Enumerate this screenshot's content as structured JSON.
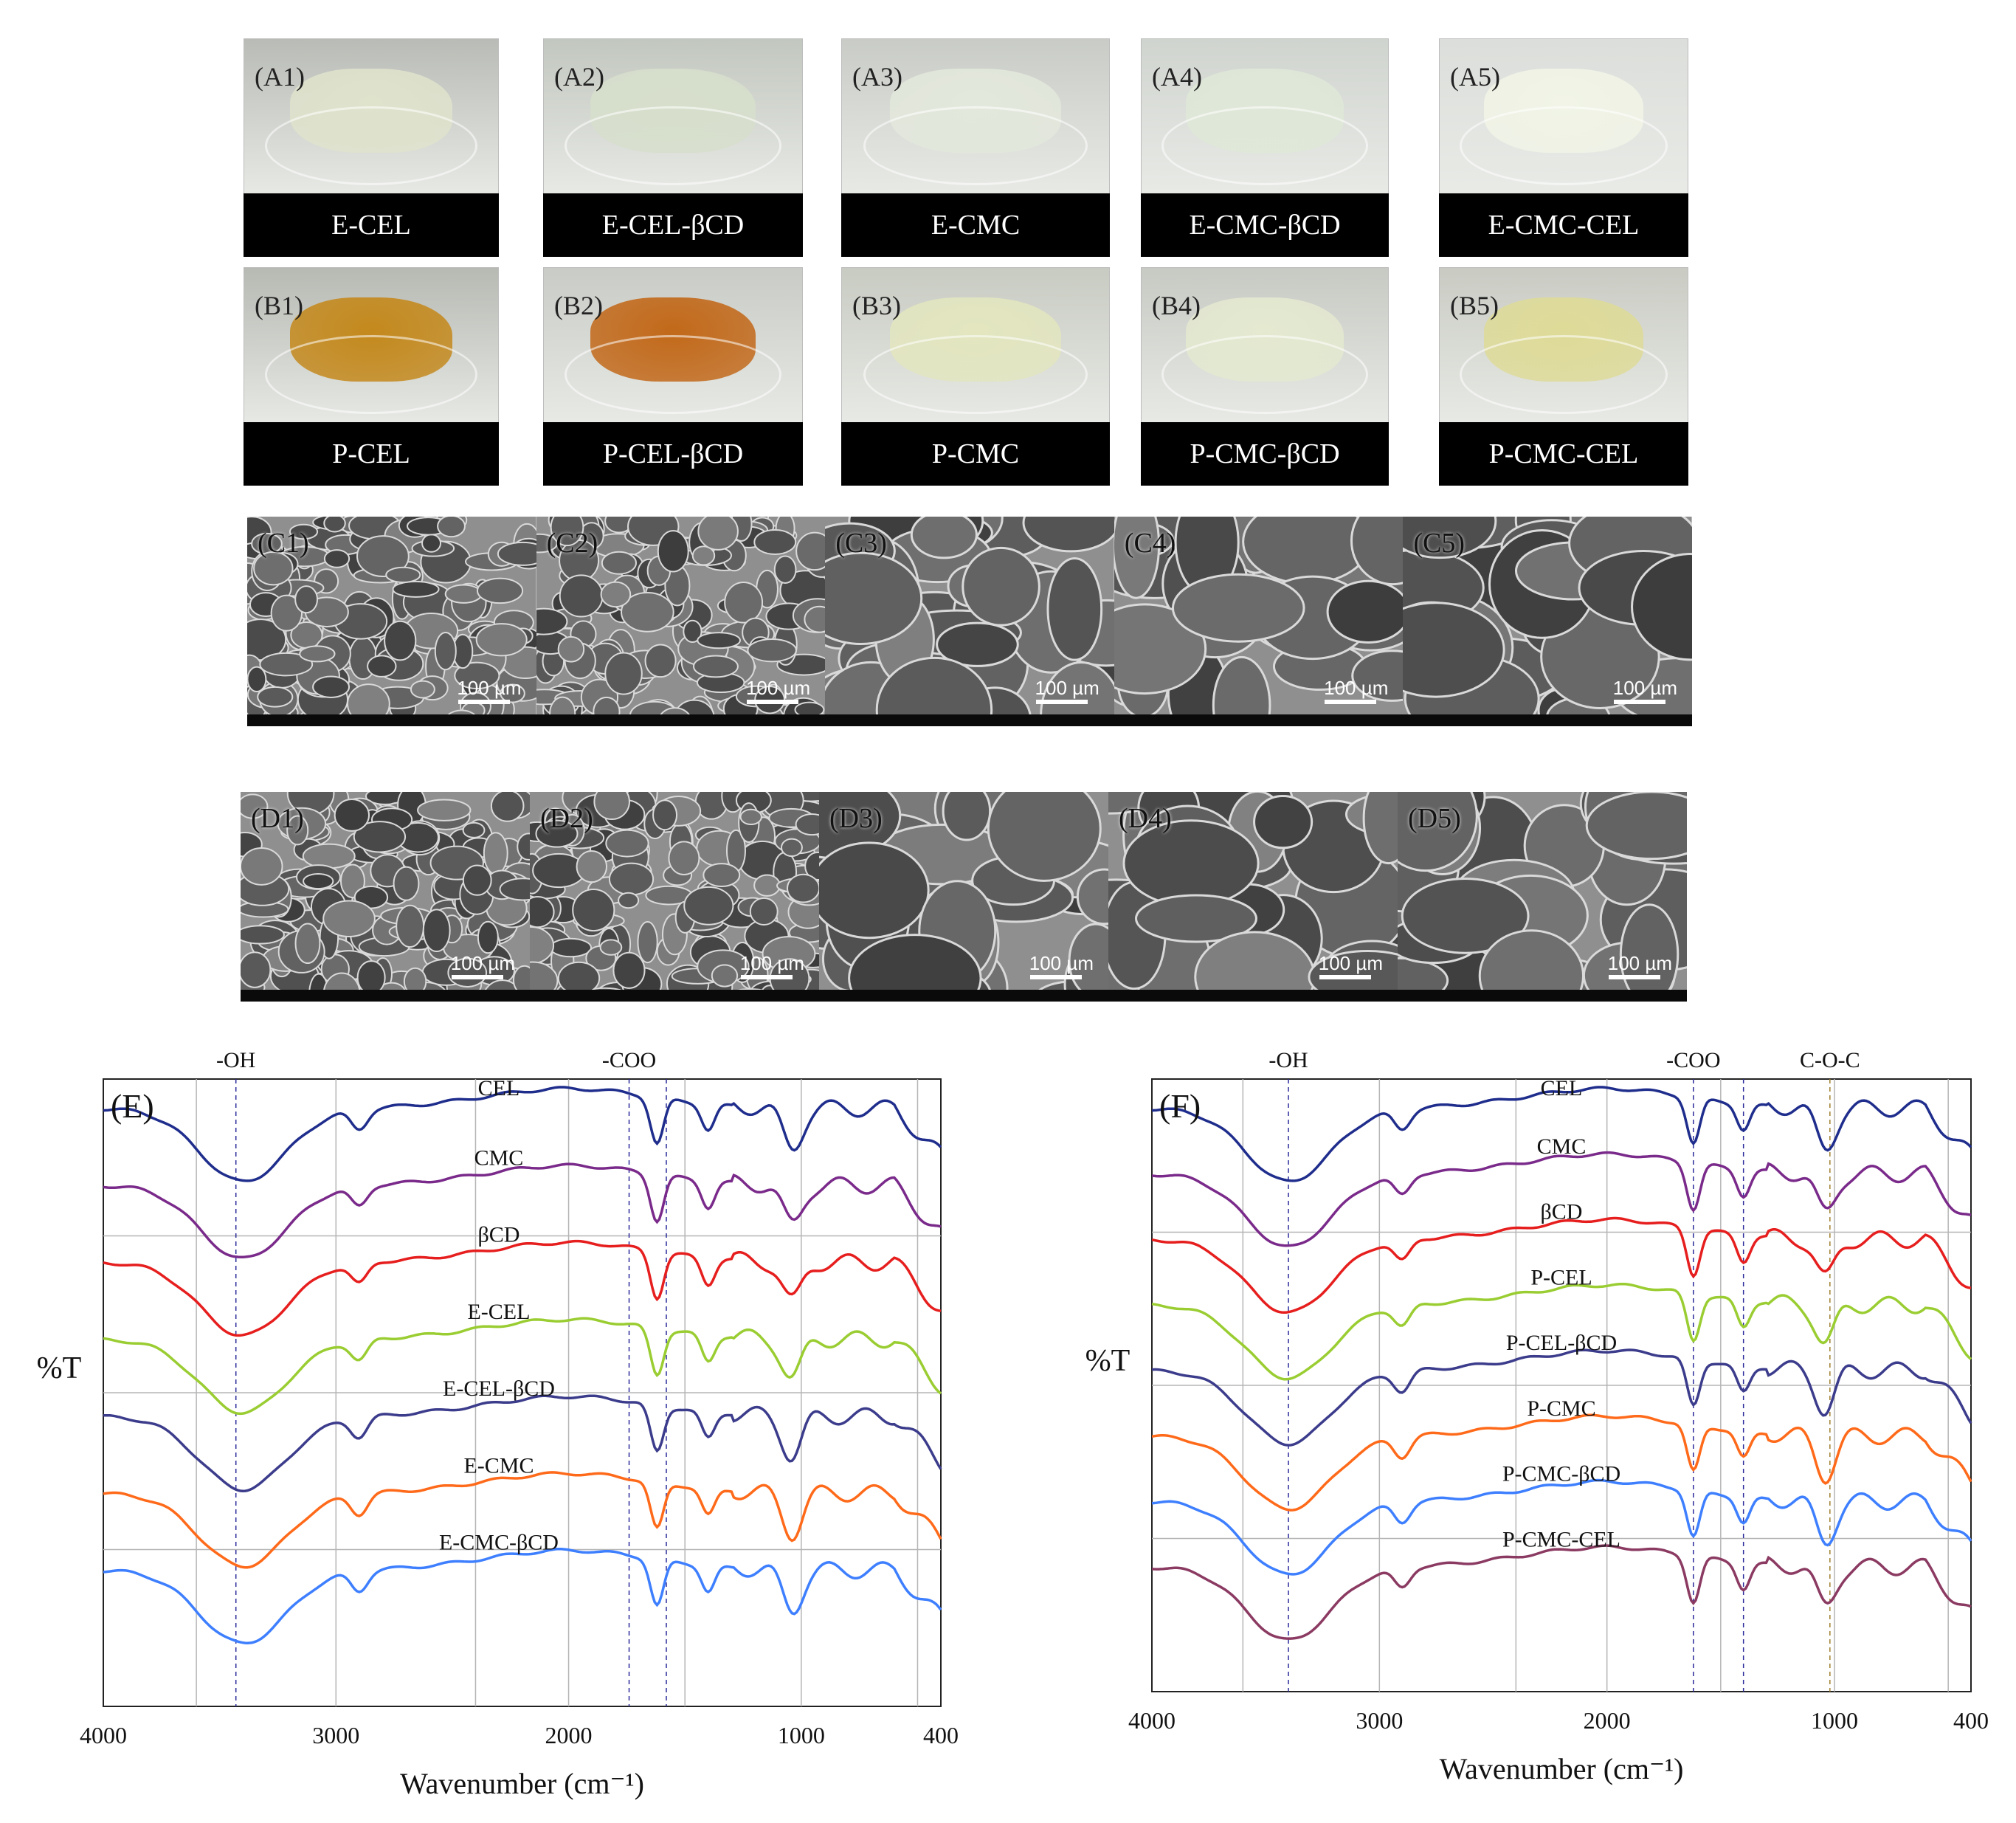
{
  "photos": {
    "rowA": [
      {
        "label": "(A1)",
        "caption": "E-CEL",
        "gel": "#dfe3cc",
        "bg": "#b9bcb6"
      },
      {
        "label": "(A2)",
        "caption": "E-CEL-βCD",
        "gel": "#d7dfcc",
        "bg": "#c2c7bf"
      },
      {
        "label": "(A3)",
        "caption": "E-CMC",
        "gel": "#e3e8dc",
        "bg": "#c9ccc6"
      },
      {
        "label": "(A4)",
        "caption": "E-CMC-βCD",
        "gel": "#dfe8d8",
        "bg": "#d0d4cf"
      },
      {
        "label": "(A5)",
        "caption": "E-CMC-CEL",
        "gel": "#f1f4e6",
        "bg": "#dcdedb"
      }
    ],
    "rowB": [
      {
        "label": "(B1)",
        "caption": "P-CEL",
        "gel": "#c4891d",
        "bg": "#b7b9b3"
      },
      {
        "label": "(B2)",
        "caption": "P-CEL-βCD",
        "gel": "#c2691a",
        "bg": "#c9cbc7"
      },
      {
        "label": "(B3)",
        "caption": "P-CMC",
        "gel": "#e3e6bf",
        "bg": "#c8cbc2"
      },
      {
        "label": "(B4)",
        "caption": "P-CMC-βCD",
        "gel": "#e4e9d0",
        "bg": "#c7cac3"
      },
      {
        "label": "(B5)",
        "caption": "P-CMC-CEL",
        "gel": "#dedb98",
        "bg": "#c9cbc3"
      }
    ]
  },
  "sem": {
    "scale_text": "100 µm",
    "rowC": [
      "(C1)",
      "(C2)",
      "(C3)",
      "(C4)",
      "(C5)"
    ],
    "rowD": [
      "(D1)",
      "(D2)",
      "(D3)",
      "(D4)",
      "(D5)"
    ]
  },
  "chart_data": [
    {
      "type": "line",
      "panel": "(E)",
      "ylabel": "%T",
      "xlabel": "Wavenumber (cm⁻¹)",
      "xlim": [
        4000,
        400
      ],
      "x_ticks": [
        "4000",
        "3000",
        "2000",
        "1000",
        "400"
      ],
      "peak_markers": [
        {
          "label": "-OH",
          "x": 3430
        },
        {
          "label": "-COO",
          "x": 1740
        },
        {
          "label": "",
          "x": 1580
        }
      ],
      "series": [
        {
          "name": "CEL",
          "color": "#1f2d8c",
          "offset": 0
        },
        {
          "name": "CMC",
          "color": "#7a2a8a",
          "offset": 1
        },
        {
          "name": "βCD",
          "color": "#e61e1e",
          "offset": 2
        },
        {
          "name": "E-CEL",
          "color": "#9acd32",
          "offset": 3
        },
        {
          "name": "E-CEL-βCD",
          "color": "#3c3c8c",
          "offset": 4
        },
        {
          "name": "E-CMC",
          "color": "#ff6a1a",
          "offset": 5
        },
        {
          "name": "E-CMC-βCD",
          "color": "#3e7fff",
          "offset": 6
        }
      ]
    },
    {
      "type": "line",
      "panel": "(F)",
      "ylabel": "%T",
      "xlabel": "Wavenumber (cm⁻¹)",
      "xlim": [
        4000,
        400
      ],
      "x_ticks": [
        "4000",
        "3000",
        "2000",
        "1000",
        "400"
      ],
      "peak_markers": [
        {
          "label": "-OH",
          "x": 3400
        },
        {
          "label": "-COO",
          "x": 1620
        },
        {
          "label": "",
          "x": 1400
        },
        {
          "label": "C-O-C",
          "x": 1020
        }
      ],
      "series": [
        {
          "name": "CEL",
          "color": "#1f2d8c",
          "offset": 0
        },
        {
          "name": "CMC",
          "color": "#7a2a8a",
          "offset": 1
        },
        {
          "name": "βCD",
          "color": "#e61e1e",
          "offset": 2
        },
        {
          "name": "P-CEL",
          "color": "#9acd32",
          "offset": 3
        },
        {
          "name": "P-CEL-βCD",
          "color": "#3c3c8c",
          "offset": 4
        },
        {
          "name": "P-CMC",
          "color": "#ff6a1a",
          "offset": 5
        },
        {
          "name": "P-CMC-βCD",
          "color": "#3e7fff",
          "offset": 6
        },
        {
          "name": "P-CMC-CEL",
          "color": "#8b3a62",
          "offset": 7
        }
      ]
    }
  ]
}
